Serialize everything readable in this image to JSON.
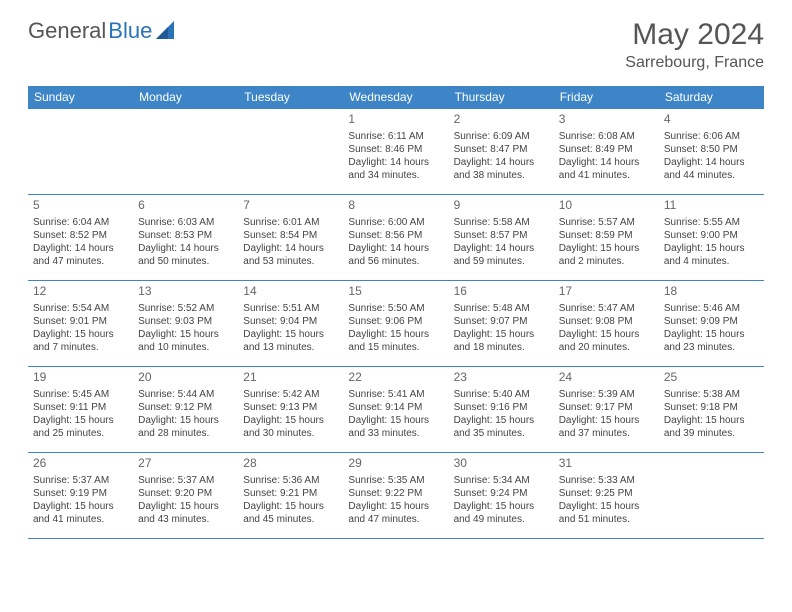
{
  "brand": {
    "word1": "General",
    "word2": "Blue"
  },
  "title": "May 2024",
  "location": "Sarrebourg, France",
  "colors": {
    "header_bg": "#3d85c6",
    "header_text": "#ffffff",
    "border": "#3d85c6",
    "brand_gray": "#555555",
    "brand_blue": "#2b73b8",
    "cell_text": "#444444"
  },
  "weekdays": [
    "Sunday",
    "Monday",
    "Tuesday",
    "Wednesday",
    "Thursday",
    "Friday",
    "Saturday"
  ],
  "weeks": [
    [
      null,
      null,
      null,
      {
        "n": "1",
        "sr": "Sunrise: 6:11 AM",
        "ss": "Sunset: 8:46 PM",
        "d1": "Daylight: 14 hours",
        "d2": "and 34 minutes."
      },
      {
        "n": "2",
        "sr": "Sunrise: 6:09 AM",
        "ss": "Sunset: 8:47 PM",
        "d1": "Daylight: 14 hours",
        "d2": "and 38 minutes."
      },
      {
        "n": "3",
        "sr": "Sunrise: 6:08 AM",
        "ss": "Sunset: 8:49 PM",
        "d1": "Daylight: 14 hours",
        "d2": "and 41 minutes."
      },
      {
        "n": "4",
        "sr": "Sunrise: 6:06 AM",
        "ss": "Sunset: 8:50 PM",
        "d1": "Daylight: 14 hours",
        "d2": "and 44 minutes."
      }
    ],
    [
      {
        "n": "5",
        "sr": "Sunrise: 6:04 AM",
        "ss": "Sunset: 8:52 PM",
        "d1": "Daylight: 14 hours",
        "d2": "and 47 minutes."
      },
      {
        "n": "6",
        "sr": "Sunrise: 6:03 AM",
        "ss": "Sunset: 8:53 PM",
        "d1": "Daylight: 14 hours",
        "d2": "and 50 minutes."
      },
      {
        "n": "7",
        "sr": "Sunrise: 6:01 AM",
        "ss": "Sunset: 8:54 PM",
        "d1": "Daylight: 14 hours",
        "d2": "and 53 minutes."
      },
      {
        "n": "8",
        "sr": "Sunrise: 6:00 AM",
        "ss": "Sunset: 8:56 PM",
        "d1": "Daylight: 14 hours",
        "d2": "and 56 minutes."
      },
      {
        "n": "9",
        "sr": "Sunrise: 5:58 AM",
        "ss": "Sunset: 8:57 PM",
        "d1": "Daylight: 14 hours",
        "d2": "and 59 minutes."
      },
      {
        "n": "10",
        "sr": "Sunrise: 5:57 AM",
        "ss": "Sunset: 8:59 PM",
        "d1": "Daylight: 15 hours",
        "d2": "and 2 minutes."
      },
      {
        "n": "11",
        "sr": "Sunrise: 5:55 AM",
        "ss": "Sunset: 9:00 PM",
        "d1": "Daylight: 15 hours",
        "d2": "and 4 minutes."
      }
    ],
    [
      {
        "n": "12",
        "sr": "Sunrise: 5:54 AM",
        "ss": "Sunset: 9:01 PM",
        "d1": "Daylight: 15 hours",
        "d2": "and 7 minutes."
      },
      {
        "n": "13",
        "sr": "Sunrise: 5:52 AM",
        "ss": "Sunset: 9:03 PM",
        "d1": "Daylight: 15 hours",
        "d2": "and 10 minutes."
      },
      {
        "n": "14",
        "sr": "Sunrise: 5:51 AM",
        "ss": "Sunset: 9:04 PM",
        "d1": "Daylight: 15 hours",
        "d2": "and 13 minutes."
      },
      {
        "n": "15",
        "sr": "Sunrise: 5:50 AM",
        "ss": "Sunset: 9:06 PM",
        "d1": "Daylight: 15 hours",
        "d2": "and 15 minutes."
      },
      {
        "n": "16",
        "sr": "Sunrise: 5:48 AM",
        "ss": "Sunset: 9:07 PM",
        "d1": "Daylight: 15 hours",
        "d2": "and 18 minutes."
      },
      {
        "n": "17",
        "sr": "Sunrise: 5:47 AM",
        "ss": "Sunset: 9:08 PM",
        "d1": "Daylight: 15 hours",
        "d2": "and 20 minutes."
      },
      {
        "n": "18",
        "sr": "Sunrise: 5:46 AM",
        "ss": "Sunset: 9:09 PM",
        "d1": "Daylight: 15 hours",
        "d2": "and 23 minutes."
      }
    ],
    [
      {
        "n": "19",
        "sr": "Sunrise: 5:45 AM",
        "ss": "Sunset: 9:11 PM",
        "d1": "Daylight: 15 hours",
        "d2": "and 25 minutes."
      },
      {
        "n": "20",
        "sr": "Sunrise: 5:44 AM",
        "ss": "Sunset: 9:12 PM",
        "d1": "Daylight: 15 hours",
        "d2": "and 28 minutes."
      },
      {
        "n": "21",
        "sr": "Sunrise: 5:42 AM",
        "ss": "Sunset: 9:13 PM",
        "d1": "Daylight: 15 hours",
        "d2": "and 30 minutes."
      },
      {
        "n": "22",
        "sr": "Sunrise: 5:41 AM",
        "ss": "Sunset: 9:14 PM",
        "d1": "Daylight: 15 hours",
        "d2": "and 33 minutes."
      },
      {
        "n": "23",
        "sr": "Sunrise: 5:40 AM",
        "ss": "Sunset: 9:16 PM",
        "d1": "Daylight: 15 hours",
        "d2": "and 35 minutes."
      },
      {
        "n": "24",
        "sr": "Sunrise: 5:39 AM",
        "ss": "Sunset: 9:17 PM",
        "d1": "Daylight: 15 hours",
        "d2": "and 37 minutes."
      },
      {
        "n": "25",
        "sr": "Sunrise: 5:38 AM",
        "ss": "Sunset: 9:18 PM",
        "d1": "Daylight: 15 hours",
        "d2": "and 39 minutes."
      }
    ],
    [
      {
        "n": "26",
        "sr": "Sunrise: 5:37 AM",
        "ss": "Sunset: 9:19 PM",
        "d1": "Daylight: 15 hours",
        "d2": "and 41 minutes."
      },
      {
        "n": "27",
        "sr": "Sunrise: 5:37 AM",
        "ss": "Sunset: 9:20 PM",
        "d1": "Daylight: 15 hours",
        "d2": "and 43 minutes."
      },
      {
        "n": "28",
        "sr": "Sunrise: 5:36 AM",
        "ss": "Sunset: 9:21 PM",
        "d1": "Daylight: 15 hours",
        "d2": "and 45 minutes."
      },
      {
        "n": "29",
        "sr": "Sunrise: 5:35 AM",
        "ss": "Sunset: 9:22 PM",
        "d1": "Daylight: 15 hours",
        "d2": "and 47 minutes."
      },
      {
        "n": "30",
        "sr": "Sunrise: 5:34 AM",
        "ss": "Sunset: 9:24 PM",
        "d1": "Daylight: 15 hours",
        "d2": "and 49 minutes."
      },
      {
        "n": "31",
        "sr": "Sunrise: 5:33 AM",
        "ss": "Sunset: 9:25 PM",
        "d1": "Daylight: 15 hours",
        "d2": "and 51 minutes."
      },
      null
    ]
  ]
}
